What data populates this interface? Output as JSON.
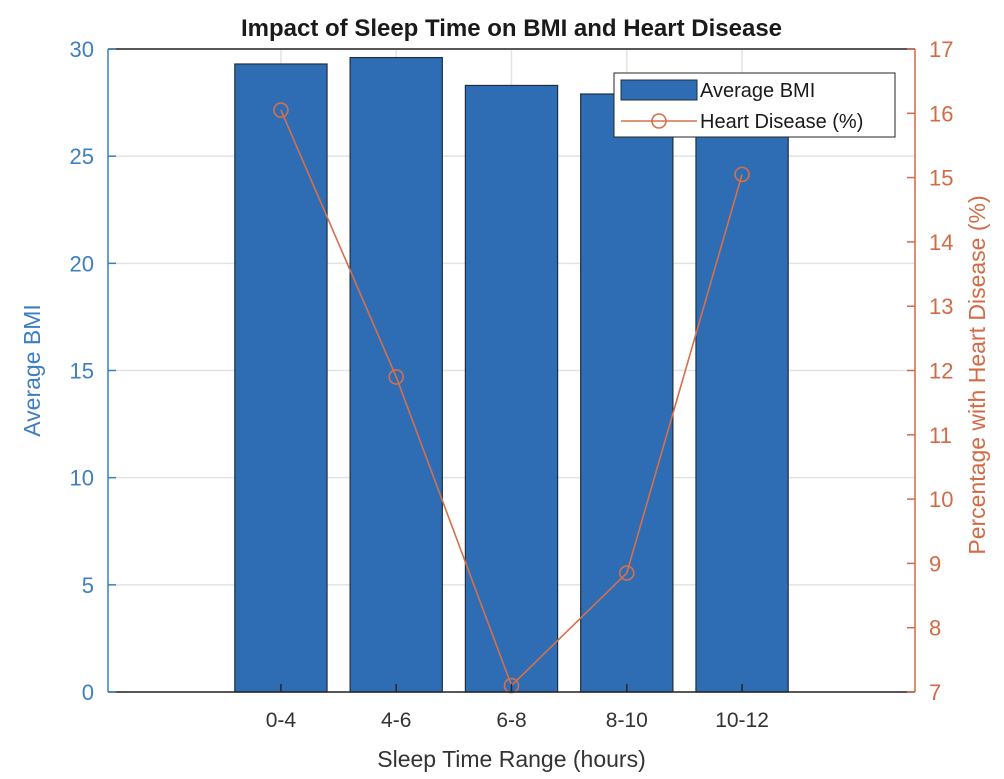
{
  "chart_data": {
    "type": "bar",
    "title": "Impact of Sleep Time on BMI and Heart Disease",
    "xlabel": "Sleep Time Range (hours)",
    "categories": [
      "0-4",
      "4-6",
      "6-8",
      "8-10",
      "10-12"
    ],
    "series": [
      {
        "name": "Average BMI",
        "type": "bar",
        "axis": "left",
        "color": "#2e6db4",
        "values": [
          29.3,
          29.6,
          28.3,
          27.9,
          27.5
        ]
      },
      {
        "name": "Heart Disease (%)",
        "type": "line",
        "axis": "right",
        "color": "#d4704c",
        "values": [
          16.05,
          11.9,
          7.1,
          8.85,
          15.05
        ]
      }
    ],
    "ylabel": "Average BMI",
    "ylim": [
      0,
      30
    ],
    "yticks": [
      0,
      5,
      10,
      15,
      20,
      25,
      30
    ],
    "y2label": "Percentage with Heart Disease (%)",
    "y2lim": [
      7,
      17
    ],
    "y2ticks": [
      7,
      8,
      9,
      10,
      11,
      12,
      13,
      14,
      15,
      16,
      17
    ],
    "grid": true,
    "legend_position": "top-right"
  }
}
